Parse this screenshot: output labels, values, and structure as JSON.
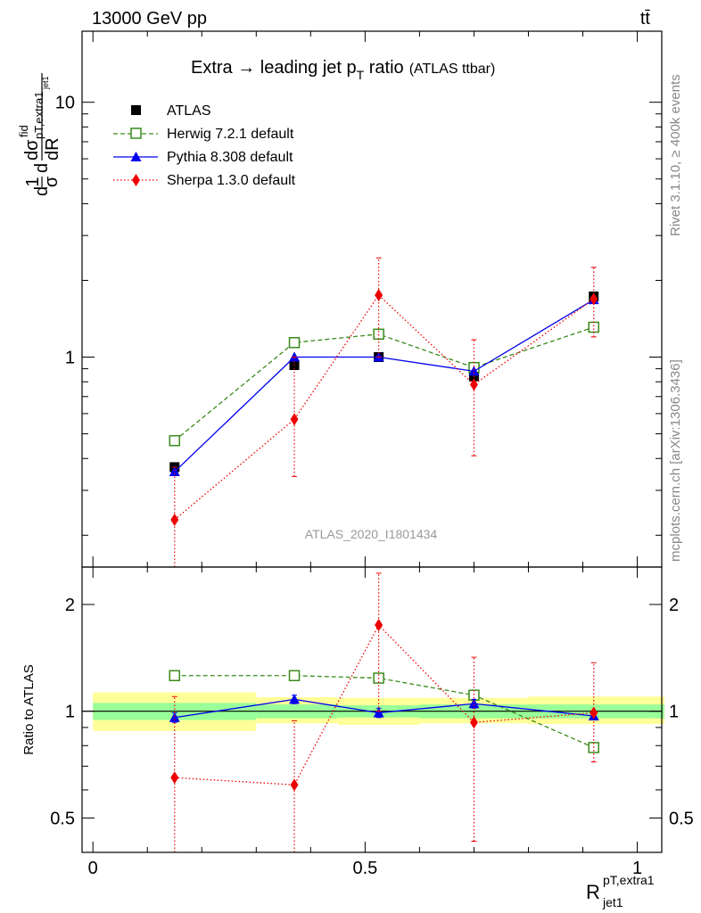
{
  "header": {
    "left_label": "13000 GeV pp",
    "right_label": "tt̄"
  },
  "main_panel": {
    "title_main": "Extra → leading jet p",
    "title_sub": "T",
    "title_tail": " ratio",
    "title_paren": "(ATLAS ttbar)",
    "ylabel_parts": {
      "frac1_num": "1",
      "frac1_den": "σ",
      "d": "d",
      "dsigma_num": "dσ",
      "sup": "fid",
      "sub": "pT,extra1",
      "subsub": "jet1",
      "den": "dR"
    },
    "watermark": "ATLAS_2020_I1801434",
    "ytick_labels": [
      "1",
      "10"
    ]
  },
  "ratio_panel": {
    "ylabel": "Ratio to ATLAS",
    "ytick_labels": [
      "0.5",
      "1",
      "2"
    ]
  },
  "xaxis": {
    "tick_labels": [
      "0",
      "0.5",
      "1"
    ],
    "label_main": "R",
    "label_sup": "pT,extra1",
    "label_sub": "jet1"
  },
  "side_text": {
    "rivet": "Rivet 3.1.10, ≥ 400k events",
    "mcplots": "mcplots.cern.ch [arXiv:1306.3436]"
  },
  "legend": [
    {
      "label": "ATLAS"
    },
    {
      "label": "Herwig 7.2.1 default"
    },
    {
      "label": "Pythia 8.308 default"
    },
    {
      "label": "Sherpa 1.3.0 default"
    }
  ],
  "chart_data": {
    "type": "scatter",
    "xlabel": "R_jet1^pT,extra1",
    "ylabel": "dσ/dR",
    "ylog": true,
    "xlim": [
      -0.02,
      1.045
    ],
    "ylim_main": [
      0.15,
      19
    ],
    "ylim_ratio": [
      0.4,
      2.55
    ],
    "bins": [
      [
        0.0,
        0.3
      ],
      [
        0.3,
        0.45
      ],
      [
        0.45,
        0.6
      ],
      [
        0.6,
        0.8
      ],
      [
        0.8,
        1.05
      ]
    ],
    "x": [
      0.15,
      0.37,
      0.525,
      0.7,
      0.92
    ],
    "colors": {
      "data": "#000000",
      "herwig": "#3a8a1a",
      "pythia": "#0000ee",
      "sherpa": "#ee0000"
    },
    "data": {
      "name": "ATLAS",
      "values": [
        0.37,
        0.93,
        1.0,
        0.84,
        1.73
      ],
      "band_inner": [
        [
          0.945,
          1.055
        ],
        [
          0.955,
          1.045
        ],
        [
          0.96,
          1.04
        ],
        [
          0.955,
          1.045
        ],
        [
          0.955,
          1.045
        ]
      ],
      "band_outer": [
        [
          0.88,
          1.13
        ],
        [
          0.925,
          1.095
        ],
        [
          0.915,
          1.09
        ],
        [
          0.925,
          1.09
        ],
        [
          0.92,
          1.1
        ]
      ]
    },
    "series": [
      {
        "name": "Herwig 7.2.1 default",
        "key": "herwig",
        "marker": "open-square",
        "dash": "dashed",
        "values": [
          0.47,
          1.14,
          1.23,
          0.91,
          1.31
        ],
        "ratio": [
          1.26,
          1.26,
          1.24,
          1.11,
          0.79
        ],
        "ratio_err": [
          0.02,
          0.015,
          0.015,
          0.015,
          0.015
        ]
      },
      {
        "name": "Pythia 8.308 default",
        "key": "pythia",
        "marker": "triangle",
        "dash": "solid",
        "values": [
          0.355,
          1.0,
          1.0,
          0.88,
          1.68
        ],
        "ratio": [
          0.96,
          1.08,
          0.99,
          1.05,
          0.97
        ],
        "ratio_err": [
          0.03,
          0.03,
          0.03,
          0.03,
          0.02
        ]
      },
      {
        "name": "Sherpa 1.3.0 default",
        "key": "sherpa",
        "marker": "diamond",
        "dash": "dotted",
        "values": [
          0.23,
          0.57,
          1.75,
          0.78,
          1.69
        ],
        "err_lo": [
          0.1,
          0.34,
          1.0,
          0.41,
          1.2
        ],
        "err_hi": [
          0.37,
          1.0,
          2.45,
          1.17,
          2.25
        ],
        "ratio": [
          0.65,
          0.62,
          1.75,
          0.93,
          0.99
        ],
        "ratio_lo": [
          0.3,
          0.3,
          1.0,
          0.43,
          0.72
        ],
        "ratio_hi": [
          1.1,
          0.94,
          2.45,
          1.42,
          1.37
        ]
      }
    ]
  }
}
